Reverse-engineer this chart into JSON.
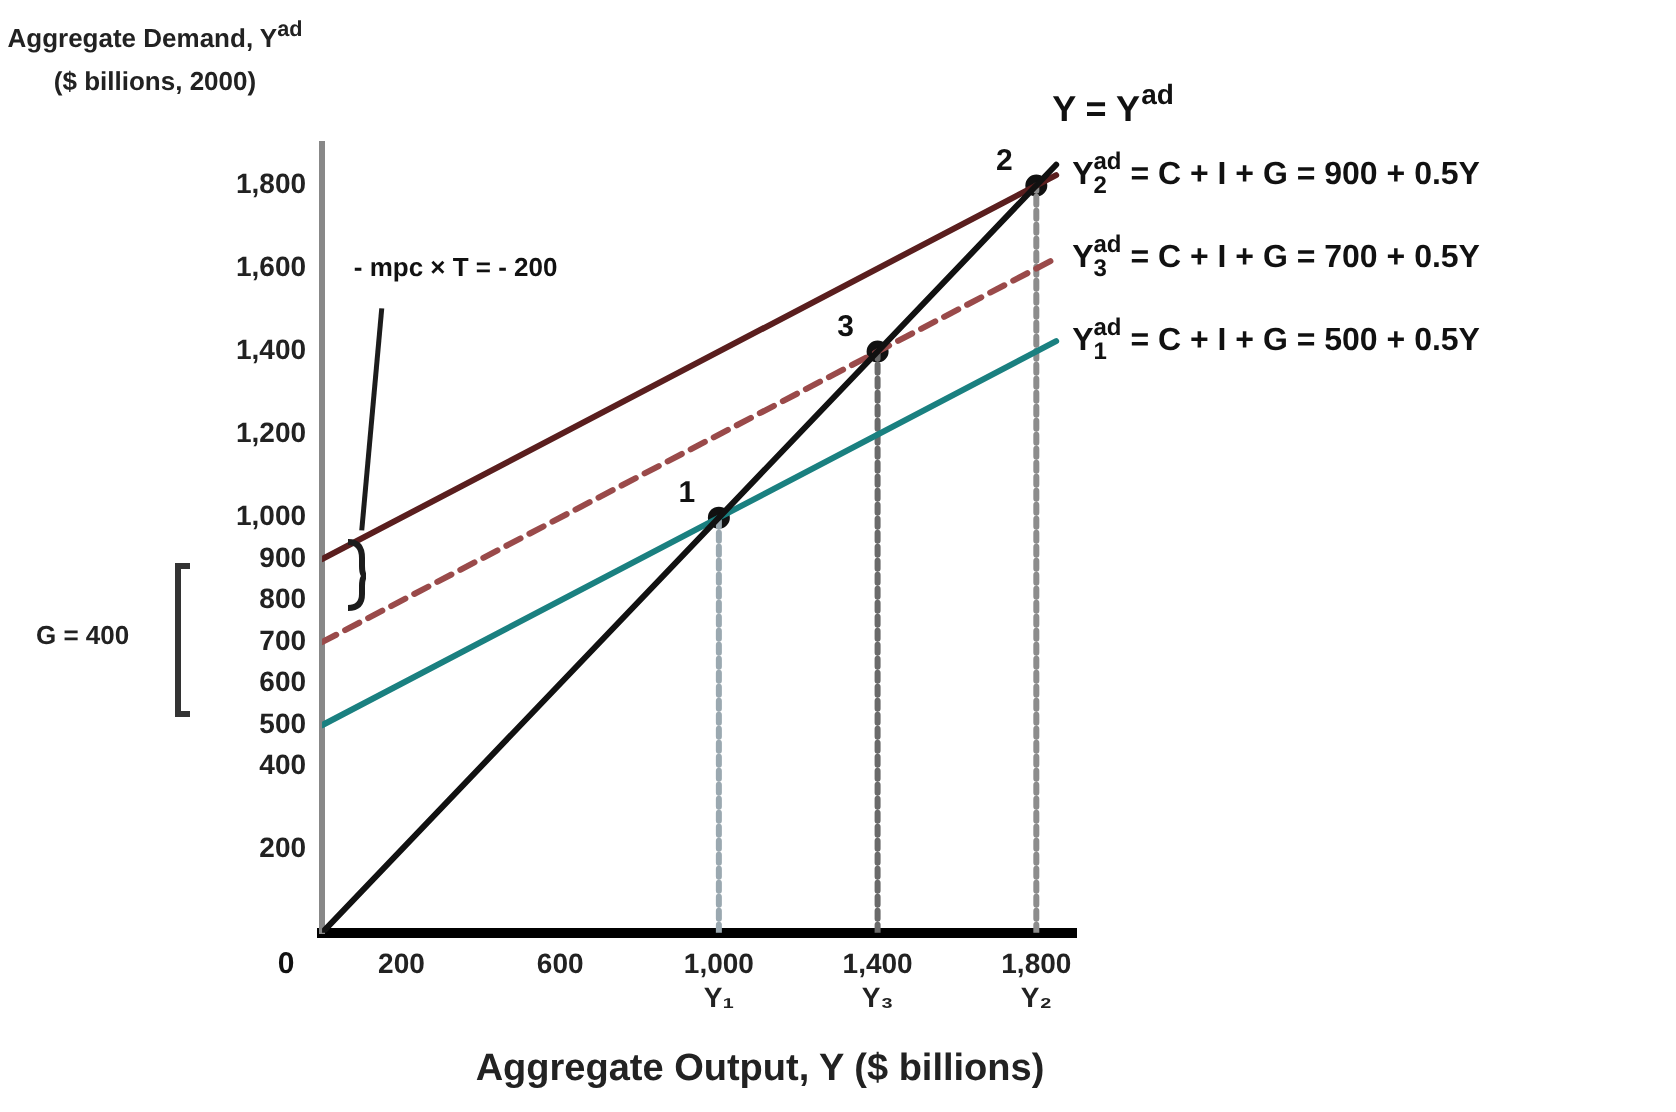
{
  "chart_data": {
    "type": "line",
    "xlabel": "Aggregate Output, Y ($ billions)",
    "ylabel": "Aggregate Demand, Y$^{ad}$ ($ billions, 2000)",
    "xlim": [
      0,
      1900
    ],
    "ylim": [
      0,
      1900
    ],
    "xticks": [
      200,
      600,
      {
        "value": 1000,
        "label": "1,000\nY₁"
      },
      {
        "value": 1400,
        "label": "1,400\nY₃"
      },
      {
        "value": 1800,
        "label": "1,800\nY₂"
      }
    ],
    "yticks": [
      200,
      400,
      500,
      600,
      700,
      800,
      900,
      {
        "value": 1000,
        "label": "1,000"
      },
      {
        "value": 1200,
        "label": "1,200"
      },
      {
        "value": 1400,
        "label": "1,400"
      },
      {
        "value": 1600,
        "label": "1,600"
      },
      {
        "value": 1800,
        "label": "1,800"
      }
    ],
    "grid": false,
    "legend": false,
    "marker": "none",
    "line_style": "solid",
    "series": [
      {
        "name": "Y = Y$^{ad}$",
        "color": "#111111",
        "x": [
          0,
          1850
        ],
        "values": [
          0,
          1850
        ]
      },
      {
        "name": "Y$_{2}$$^{ad}$ = C + I + G = 900 + 0.5Y",
        "color": "#5a1e1e",
        "x": [
          0,
          1850
        ],
        "values": [
          900,
          1825
        ]
      },
      {
        "name": "Y$_{3}$$^{ad}$ = C + I + G = 700 + 0.5Y",
        "color": "#9a4a4a",
        "x": [
          0,
          1850
        ],
        "values": [
          700,
          1625
        ],
        "line_style": "dashed"
      },
      {
        "name": "Y$_{1}$$^{ad}$ = C + I + G = 500 + 0.5Y",
        "color": "#1a8080",
        "x": [
          0,
          1850
        ],
        "values": [
          500,
          1425
        ]
      },
      {
        "color": "#9aa8b0",
        "x": [
          1000,
          1000
        ],
        "values": [
          0,
          1000
        ],
        "line_style": "dotted"
      },
      {
        "color": "#6a6a6a",
        "x": [
          1400,
          1400
        ],
        "values": [
          0,
          1400
        ],
        "line_style": "dotted"
      },
      {
        "color": "#8c8c8c",
        "x": [
          1800,
          1800
        ],
        "values": [
          0,
          1800
        ],
        "line_style": "dotted"
      },
      {
        "type": "scatter",
        "color": "#111111",
        "marker": "circle",
        "x": [
          1000,
          1400,
          1800
        ],
        "values": [
          1000,
          1400,
          1800
        ]
      }
    ],
    "annotations": [
      {
        "text": "- mpc × T = - 200",
        "x": 100,
        "y": 950
      },
      "G = 400",
      {
        "text": "0",
        "x": 0,
        "y": 0
      },
      {
        "text": "1",
        "x": 1000,
        "y": 1000
      },
      {
        "text": "3",
        "x": 1400,
        "y": 1400
      },
      {
        "text": "2",
        "x": 1800,
        "y": 1800
      }
    ]
  }
}
